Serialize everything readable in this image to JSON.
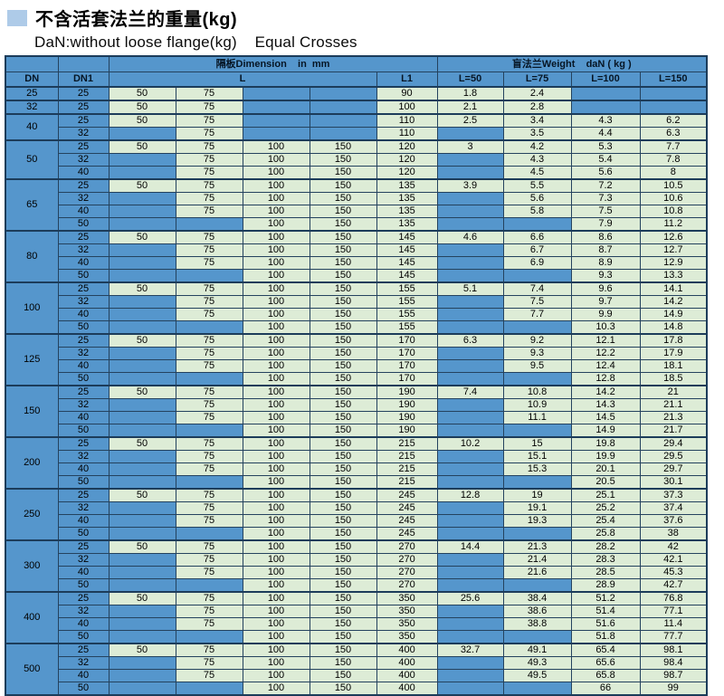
{
  "page": {
    "title": "不含活套法兰的重量(kg)",
    "subtitle": "DaN:without loose flange(kg)    Equal Crosses"
  },
  "colors": {
    "cell_blue": "#5596CC",
    "cell_green": "#DDECD6",
    "title_square_blue": "#AECBE8",
    "grid_line": "#24425E"
  },
  "table": {
    "header": {
      "dimension_label": "隔板Dimension    in  mm",
      "weight_label": "盲法兰Weight    daN ( kg )",
      "dn": "DN",
      "dn1": "DN1",
      "l": "L",
      "l1": "L1",
      "weight_cols": [
        "L=50",
        "L=75",
        "L=100",
        "L=150"
      ]
    },
    "groups": [
      {
        "dn": "25",
        "rows": [
          [
            "25",
            "50",
            "75",
            "",
            "",
            "90",
            "1.8",
            "2.4",
            "",
            ""
          ]
        ]
      },
      {
        "dn": "32",
        "rows": [
          [
            "25",
            "50",
            "75",
            "",
            "",
            "100",
            "2.1",
            "2.8",
            "",
            ""
          ]
        ]
      },
      {
        "dn": "40",
        "rows": [
          [
            "25",
            "50",
            "75",
            "",
            "",
            "110",
            "2.5",
            "3.4",
            "4.3",
            "6.2"
          ],
          [
            "32",
            "",
            "75",
            "",
            "",
            "110",
            "",
            "3.5",
            "4.4",
            "6.3"
          ]
        ]
      },
      {
        "dn": "50",
        "rows": [
          [
            "25",
            "50",
            "75",
            "100",
            "150",
            "120",
            "3",
            "4.2",
            "5.3",
            "7.7"
          ],
          [
            "32",
            "",
            "75",
            "100",
            "150",
            "120",
            "",
            "4.3",
            "5.4",
            "7.8"
          ],
          [
            "40",
            "",
            "75",
            "100",
            "150",
            "120",
            "",
            "4.5",
            "5.6",
            "8"
          ]
        ]
      },
      {
        "dn": "65",
        "rows": [
          [
            "25",
            "50",
            "75",
            "100",
            "150",
            "135",
            "3.9",
            "5.5",
            "7.2",
            "10.5"
          ],
          [
            "32",
            "",
            "75",
            "100",
            "150",
            "135",
            "",
            "5.6",
            "7.3",
            "10.6"
          ],
          [
            "40",
            "",
            "75",
            "100",
            "150",
            "135",
            "",
            "5.8",
            "7.5",
            "10.8"
          ],
          [
            "50",
            "",
            "",
            "100",
            "150",
            "135",
            "",
            "",
            "7.9",
            "11.2"
          ]
        ]
      },
      {
        "dn": "80",
        "rows": [
          [
            "25",
            "50",
            "75",
            "100",
            "150",
            "145",
            "4.6",
            "6.6",
            "8.6",
            "12.6"
          ],
          [
            "32",
            "",
            "75",
            "100",
            "150",
            "145",
            "",
            "6.7",
            "8.7",
            "12.7"
          ],
          [
            "40",
            "",
            "75",
            "100",
            "150",
            "145",
            "",
            "6.9",
            "8.9",
            "12.9"
          ],
          [
            "50",
            "",
            "",
            "100",
            "150",
            "145",
            "",
            "",
            "9.3",
            "13.3"
          ]
        ]
      },
      {
        "dn": "100",
        "rows": [
          [
            "25",
            "50",
            "75",
            "100",
            "150",
            "155",
            "5.1",
            "7.4",
            "9.6",
            "14.1"
          ],
          [
            "32",
            "",
            "75",
            "100",
            "150",
            "155",
            "",
            "7.5",
            "9.7",
            "14.2"
          ],
          [
            "40",
            "",
            "75",
            "100",
            "150",
            "155",
            "",
            "7.7",
            "9.9",
            "14.9"
          ],
          [
            "50",
            "",
            "",
            "100",
            "150",
            "155",
            "",
            "",
            "10.3",
            "14.8"
          ]
        ]
      },
      {
        "dn": "125",
        "rows": [
          [
            "25",
            "50",
            "75",
            "100",
            "150",
            "170",
            "6.3",
            "9.2",
            "12.1",
            "17.8"
          ],
          [
            "32",
            "",
            "75",
            "100",
            "150",
            "170",
            "",
            "9.3",
            "12.2",
            "17.9"
          ],
          [
            "40",
            "",
            "75",
            "100",
            "150",
            "170",
            "",
            "9.5",
            "12.4",
            "18.1"
          ],
          [
            "50",
            "",
            "",
            "100",
            "150",
            "170",
            "",
            "",
            "12.8",
            "18.5"
          ]
        ]
      },
      {
        "dn": "150",
        "rows": [
          [
            "25",
            "50",
            "75",
            "100",
            "150",
            "190",
            "7.4",
            "10.8",
            "14.2",
            "21"
          ],
          [
            "32",
            "",
            "75",
            "100",
            "150",
            "190",
            "",
            "10.9",
            "14.3",
            "21.1"
          ],
          [
            "40",
            "",
            "75",
            "100",
            "150",
            "190",
            "",
            "11.1",
            "14.5",
            "21.3"
          ],
          [
            "50",
            "",
            "",
            "100",
            "150",
            "190",
            "",
            "",
            "14.9",
            "21.7"
          ]
        ]
      },
      {
        "dn": "200",
        "rows": [
          [
            "25",
            "50",
            "75",
            "100",
            "150",
            "215",
            "10.2",
            "15",
            "19.8",
            "29.4"
          ],
          [
            "32",
            "",
            "75",
            "100",
            "150",
            "215",
            "",
            "15.1",
            "19.9",
            "29.5"
          ],
          [
            "40",
            "",
            "75",
            "100",
            "150",
            "215",
            "",
            "15.3",
            "20.1",
            "29.7"
          ],
          [
            "50",
            "",
            "",
            "100",
            "150",
            "215",
            "",
            "",
            "20.5",
            "30.1"
          ]
        ]
      },
      {
        "dn": "250",
        "rows": [
          [
            "25",
            "50",
            "75",
            "100",
            "150",
            "245",
            "12.8",
            "19",
            "25.1",
            "37.3"
          ],
          [
            "32",
            "",
            "75",
            "100",
            "150",
            "245",
            "",
            "19.1",
            "25.2",
            "37.4"
          ],
          [
            "40",
            "",
            "75",
            "100",
            "150",
            "245",
            "",
            "19.3",
            "25.4",
            "37.6"
          ],
          [
            "50",
            "",
            "",
            "100",
            "150",
            "245",
            "",
            "",
            "25.8",
            "38"
          ]
        ]
      },
      {
        "dn": "300",
        "rows": [
          [
            "25",
            "50",
            "75",
            "100",
            "150",
            "270",
            "14.4",
            "21.3",
            "28.2",
            "42"
          ],
          [
            "32",
            "",
            "75",
            "100",
            "150",
            "270",
            "",
            "21.4",
            "28.3",
            "42.1"
          ],
          [
            "40",
            "",
            "75",
            "100",
            "150",
            "270",
            "",
            "21.6",
            "28.5",
            "45.3"
          ],
          [
            "50",
            "",
            "",
            "100",
            "150",
            "270",
            "",
            "",
            "28.9",
            "42.7"
          ]
        ]
      },
      {
        "dn": "400",
        "rows": [
          [
            "25",
            "50",
            "75",
            "100",
            "150",
            "350",
            "25.6",
            "38.4",
            "51.2",
            "76.8"
          ],
          [
            "32",
            "",
            "75",
            "100",
            "150",
            "350",
            "",
            "38.6",
            "51.4",
            "77.1"
          ],
          [
            "40",
            "",
            "75",
            "100",
            "150",
            "350",
            "",
            "38.8",
            "51.6",
            "11.4"
          ],
          [
            "50",
            "",
            "",
            "100",
            "150",
            "350",
            "",
            "",
            "51.8",
            "77.7"
          ]
        ]
      },
      {
        "dn": "500",
        "rows": [
          [
            "25",
            "50",
            "75",
            "100",
            "150",
            "400",
            "32.7",
            "49.1",
            "65.4",
            "98.1"
          ],
          [
            "32",
            "",
            "75",
            "100",
            "150",
            "400",
            "",
            "49.3",
            "65.6",
            "98.4"
          ],
          [
            "40",
            "",
            "75",
            "100",
            "150",
            "400",
            "",
            "49.5",
            "65.8",
            "98.7"
          ],
          [
            "50",
            "",
            "",
            "100",
            "150",
            "400",
            "",
            "",
            "66",
            "99"
          ]
        ]
      }
    ]
  }
}
